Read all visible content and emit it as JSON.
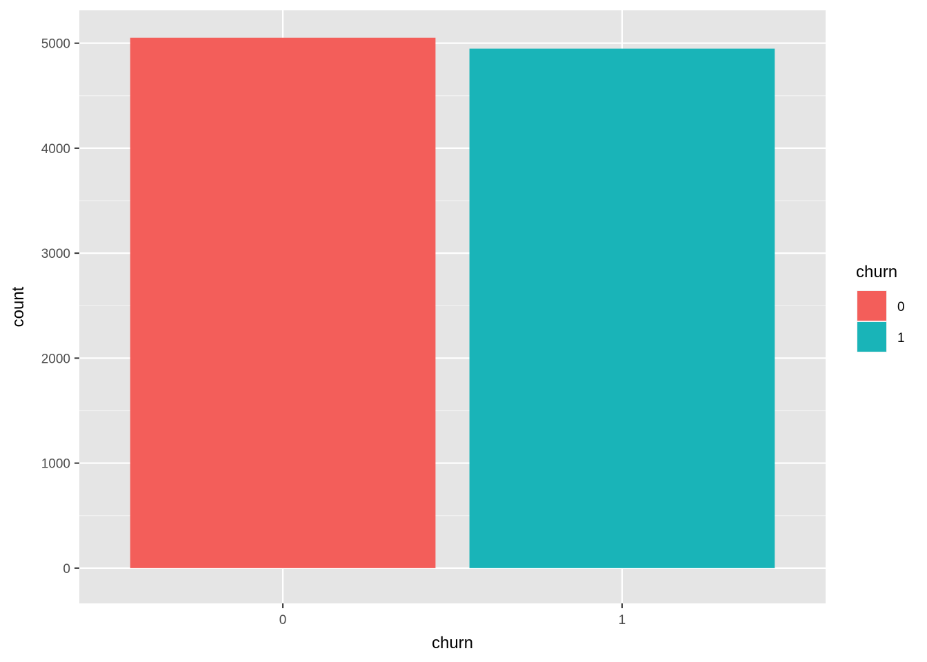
{
  "chart_data": {
    "type": "bar",
    "categories": [
      "0",
      "1"
    ],
    "values": [
      5052,
      4948
    ],
    "colors": [
      "#F35E5A",
      "#19B4B8"
    ],
    "xlabel": "churn",
    "ylabel": "count",
    "ylim": [
      -336,
      5313
    ],
    "yticks": [
      0,
      1000,
      2000,
      3000,
      4000,
      5000
    ],
    "ytick_labels": [
      "0",
      "1000",
      "2000",
      "3000",
      "4000",
      "5000"
    ],
    "grid": true,
    "panel_background": "#E5E5E5",
    "legend": {
      "title": "churn",
      "position": "right",
      "items": [
        {
          "label": "0",
          "color": "#F35E5A"
        },
        {
          "label": "1",
          "color": "#19B4B8"
        }
      ]
    }
  }
}
